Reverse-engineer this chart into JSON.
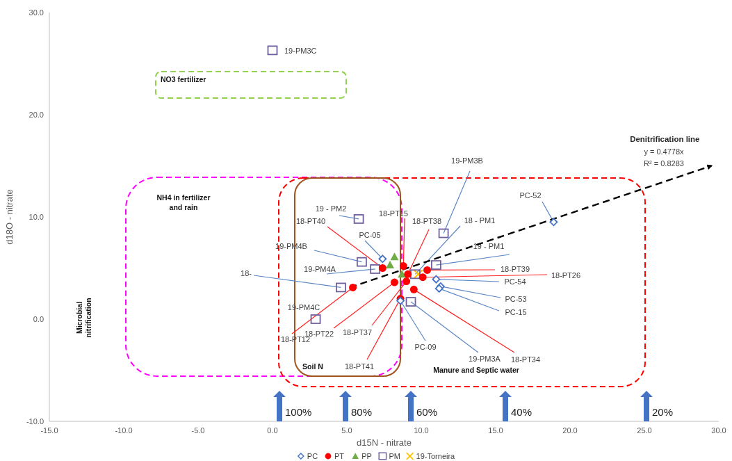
{
  "chart_data": {
    "type": "scatter",
    "xlabel": "d15N - nitrate",
    "ylabel": "d18O - nitrate",
    "xlim": [
      -15,
      30
    ],
    "xticks": [
      {
        "value": -15,
        "label": "-15.0"
      },
      {
        "value": -10,
        "label": "-10.0"
      },
      {
        "value": -5,
        "label": "-5.0"
      },
      {
        "value": 0,
        "label": "0.0"
      },
      {
        "value": 5,
        "label": "5.0"
      },
      {
        "value": 10,
        "label": "10.0"
      },
      {
        "value": 15,
        "label": "15.0"
      },
      {
        "value": 20,
        "label": "20.0"
      },
      {
        "value": 25,
        "label": "25.0"
      },
      {
        "value": 30,
        "label": "30.0"
      }
    ],
    "ylim": [
      -10,
      30
    ],
    "yticks": [
      {
        "value": -10,
        "label": "-10.0"
      },
      {
        "value": 0,
        "label": "0.0"
      },
      {
        "value": 10,
        "label": "10.0"
      },
      {
        "value": 20,
        "label": "20.0"
      },
      {
        "value": 30,
        "label": "30.0"
      }
    ],
    "grid": false,
    "legend": "bottom",
    "series": [
      {
        "name": "PC",
        "color": "#4472c4",
        "marker": "diamond",
        "x": [
          7.4,
          8.6,
          11.0,
          11.3,
          11.2,
          18.9
        ],
        "values": [
          5.9,
          1.8,
          3.9,
          3.2,
          3.0,
          9.5
        ]
      },
      {
        "name": "PT",
        "color": "#ff0000",
        "marker": "circle",
        "x": [
          7.4,
          5.4,
          8.8,
          9.1,
          8.2,
          9.0,
          9.5,
          8.6,
          10.4,
          10.1
        ],
        "values": [
          5.0,
          3.1,
          5.2,
          4.4,
          3.6,
          3.7,
          2.9,
          2.0,
          4.8,
          4.1
        ]
      },
      {
        "name": "PP",
        "color": "#70ad47",
        "marker": "triangle",
        "x": [
          8.2,
          7.9,
          8.7
        ],
        "values": [
          6.1,
          5.3,
          4.4
        ]
      },
      {
        "name": "PM",
        "color": "#7060a0",
        "marker": "square",
        "x": [
          0.0,
          5.8,
          6.0,
          6.9,
          4.6,
          2.9,
          9.3,
          9.6,
          11.5,
          11.0
        ],
        "values": [
          26.3,
          9.8,
          5.6,
          4.9,
          3.1,
          0.0,
          1.7,
          4.4,
          8.4,
          5.3
        ]
      },
      {
        "name": "19-Torneira",
        "color": "#ffc000",
        "marker": "cross",
        "x": [
          9.8
        ],
        "values": [
          4.4
        ]
      },
      {
        "name": "Denitrification line",
        "type": "line",
        "color": "#000000",
        "marker": "none",
        "line_style": "dashed",
        "x": [
          5.2,
          29.5
        ],
        "values": [
          3.1,
          15.0
        ]
      }
    ],
    "annotations": [
      {
        "text": "19-PM3C",
        "x": 0.0,
        "y": 26.3
      },
      {
        "text": "19 - PM2",
        "x": 5.8,
        "y": 9.8
      },
      {
        "text": "19-PM4B",
        "x": 6.0,
        "y": 5.6
      },
      {
        "text": "19-PM4A",
        "x": 6.9,
        "y": 4.9
      },
      {
        "text": "18-",
        "x": 4.6,
        "y": 3.1
      },
      {
        "text": "19-PM4C",
        "x": 2.9,
        "y": 0.0
      },
      {
        "text": "19-PM3A",
        "x": 9.3,
        "y": 1.7
      },
      {
        "text": "18 - PM1",
        "x": 9.6,
        "y": 4.4
      },
      {
        "text": "19-PM3B",
        "x": 11.5,
        "y": 8.4
      },
      {
        "text": "19 - PM1",
        "x": 11.0,
        "y": 5.3
      },
      {
        "text": "PC-05",
        "x": 7.4,
        "y": 5.9
      },
      {
        "text": "PC-09",
        "x": 8.6,
        "y": 1.8
      },
      {
        "text": "PC-54",
        "x": 11.0,
        "y": 3.9
      },
      {
        "text": "PC-53",
        "x": 11.3,
        "y": 3.2
      },
      {
        "text": "PC-15",
        "x": 11.2,
        "y": 3.0
      },
      {
        "text": "PC-52",
        "x": 18.9,
        "y": 9.5
      },
      {
        "text": "18-PT40",
        "x": 7.4,
        "y": 5.0
      },
      {
        "text": "18-PT15",
        "x": 8.8,
        "y": 5.2
      },
      {
        "text": "18-PT38",
        "x": 9.1,
        "y": 4.4
      },
      {
        "text": "18-PT39",
        "x": 10.4,
        "y": 4.8
      },
      {
        "text": "18-PT26",
        "x": 10.1,
        "y": 4.1
      },
      {
        "text": "18-PT34",
        "x": 9.5,
        "y": 2.9
      },
      {
        "text": "18-PT41",
        "x": 8.6,
        "y": 2.0
      },
      {
        "text": "18-PT37",
        "x": 9.0,
        "y": 3.7
      },
      {
        "text": "18-PT22",
        "x": 8.2,
        "y": 3.6
      },
      {
        "text": "18-PT12",
        "x": 5.4,
        "y": 3.1
      },
      "NO3 fertilizer",
      "NH4 in fertilizer and rain",
      "Soil N",
      "Manure and Septic water",
      "Microbial nitrification",
      "y = 0.4778x",
      "R² = 0.8283",
      "100%",
      "80%",
      "60%",
      "40%",
      "20%"
    ]
  }
}
